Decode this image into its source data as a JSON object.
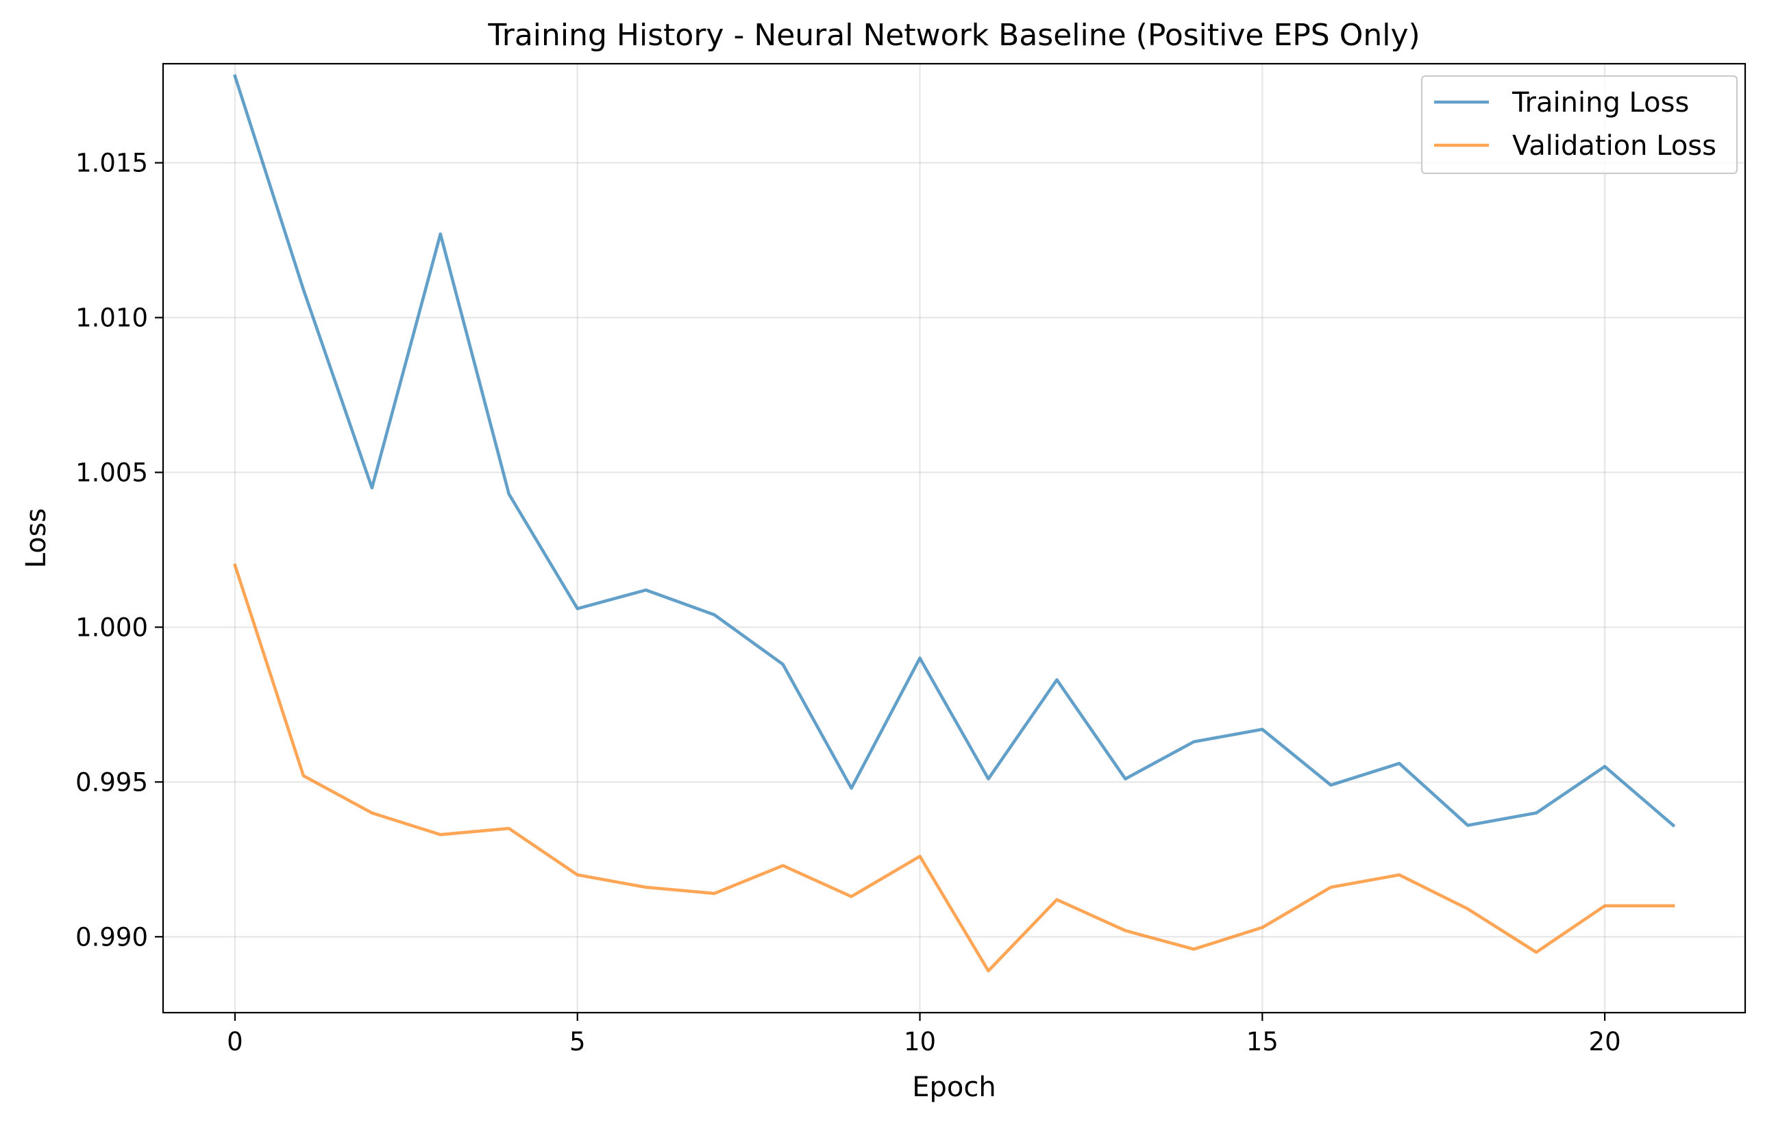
{
  "chart_data": {
    "type": "line",
    "title": "Training History - Neural Network Baseline (Positive EPS Only)",
    "xlabel": "Epoch",
    "ylabel": "Loss",
    "x": [
      0,
      1,
      2,
      3,
      4,
      5,
      6,
      7,
      8,
      9,
      10,
      11,
      12,
      13,
      14,
      15,
      16,
      17,
      18,
      19,
      20,
      21
    ],
    "xlim": [
      -1.05,
      22.05
    ],
    "ylim": [
      0.98755,
      1.0182
    ],
    "xticks": [
      0,
      5,
      10,
      15,
      20
    ],
    "xtick_labels": [
      "0",
      "5",
      "10",
      "15",
      "20"
    ],
    "yticks": [
      0.99,
      0.995,
      1.0,
      1.005,
      1.01,
      1.015
    ],
    "ytick_labels": [
      "0.990",
      "0.995",
      "1.000",
      "1.005",
      "1.010",
      "1.015"
    ],
    "grid": true,
    "legend_position": "top-right",
    "series": [
      {
        "name": "Training Loss",
        "color": "#1f77b4",
        "values": [
          1.0178,
          1.0109,
          1.0045,
          1.0127,
          1.0043,
          1.0006,
          1.0012,
          1.0004,
          0.9988,
          0.9948,
          0.999,
          0.9951,
          0.9983,
          0.9951,
          0.9963,
          0.9967,
          0.9949,
          0.9956,
          0.9936,
          0.994,
          0.9955,
          0.9936
        ]
      },
      {
        "name": "Validation Loss",
        "color": "#ff7f0e",
        "values": [
          1.002,
          0.9952,
          0.994,
          0.9933,
          0.9935,
          0.992,
          0.9916,
          0.9914,
          0.9923,
          0.9913,
          0.9926,
          0.9889,
          0.9912,
          0.9902,
          0.9896,
          0.9903,
          0.9916,
          0.992,
          0.9909,
          0.9895,
          0.991,
          0.991
        ]
      }
    ]
  }
}
